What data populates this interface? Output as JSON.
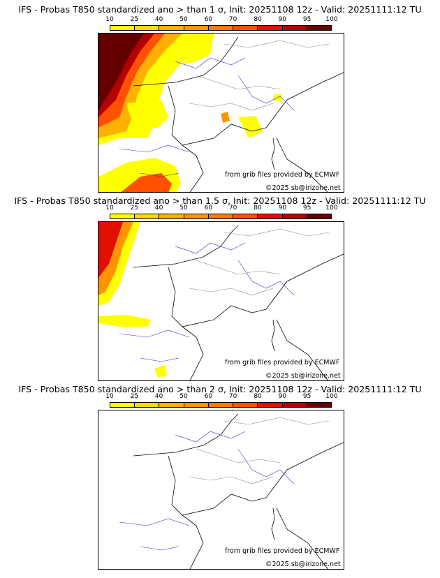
{
  "colorbar": {
    "ticks": [
      "10",
      "25",
      "40",
      "50",
      "60",
      "70",
      "80",
      "90",
      "95",
      "100"
    ],
    "colors": [
      "#ffff00",
      "#ffd700",
      "#ffb000",
      "#ff9400",
      "#ff7a00",
      "#ff5000",
      "#e01000",
      "#b40000",
      "#640000"
    ]
  },
  "panels": [
    {
      "title": "IFS - Probas T850  standardized ano > than 1 σ, Init: 20251108 12z - Valid: 20251111:12 TU",
      "source_credit": "from grib files provided by ECMWF",
      "copyright": "©2025 sb@irizone.net"
    },
    {
      "title": "IFS - Probas T850  standardized ano > than 1.5 σ, Init: 20251108 12z - Valid: 20251111:12 TU",
      "source_credit": "from grib files provided by ECMWF",
      "copyright": "©2025 sb@irizone.net"
    },
    {
      "title": "IFS - Probas T850  standardized ano > than 2 σ, Init: 20251108 12z - Valid: 20251111:12 TU",
      "source_credit": "from grib files provided by ECMWF",
      "copyright": "©2025 sb@irizone.net"
    }
  ]
}
